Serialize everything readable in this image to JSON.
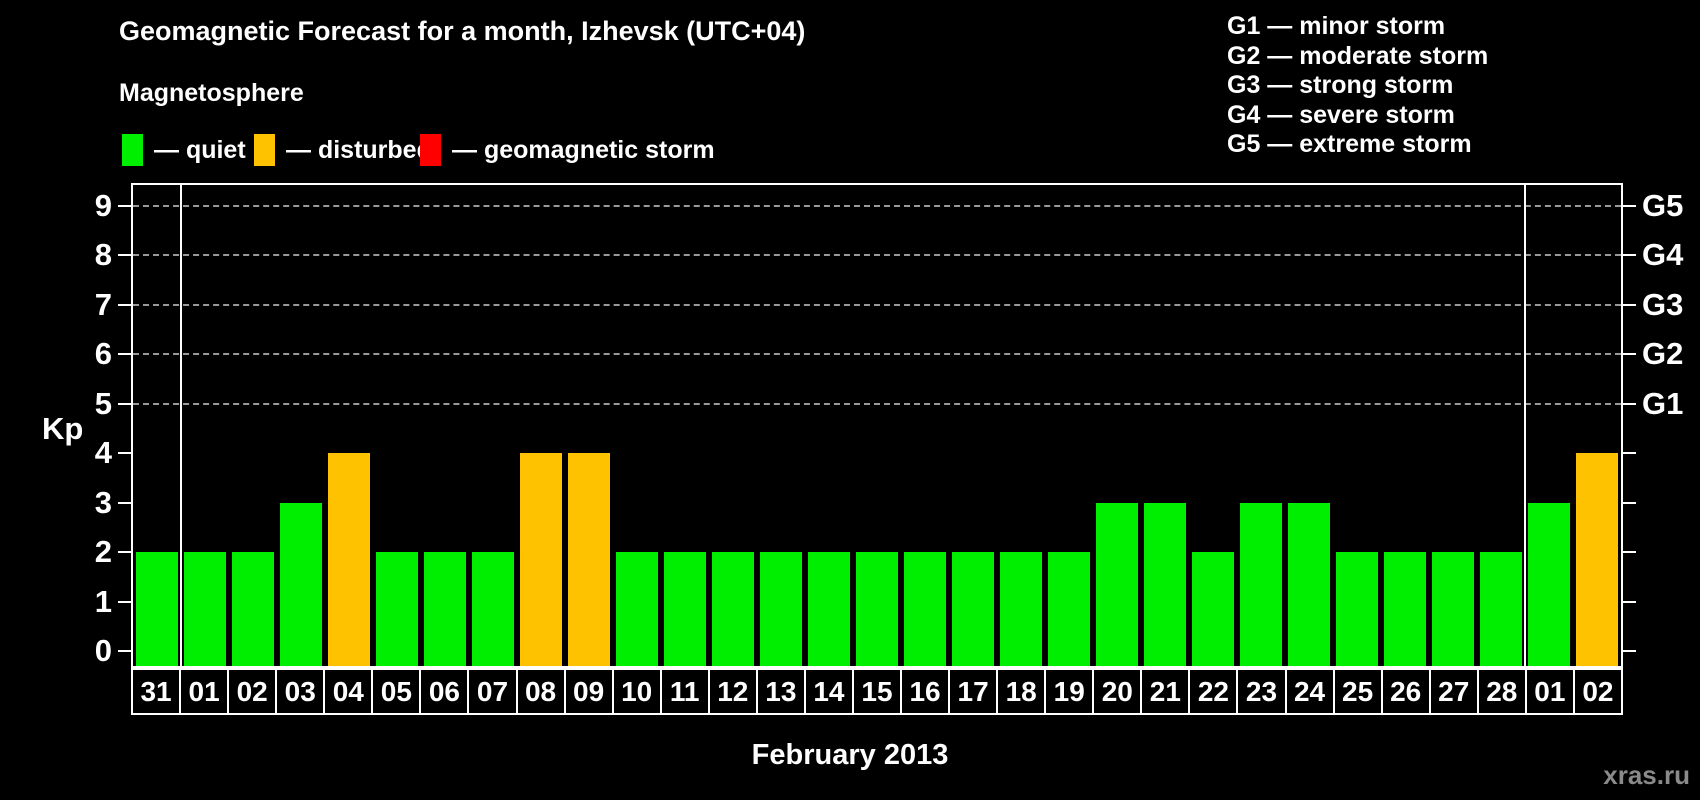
{
  "title": "Geomagnetic Forecast for a month, Izhevsk (UTC+04)",
  "subtitle": "Magnetosphere",
  "legend": {
    "items": [
      {
        "key": "quiet",
        "label": "— quiet",
        "color": "#00ee00",
        "x": 122
      },
      {
        "key": "disturbed",
        "label": "— disturbed",
        "color": "#ffc200",
        "x": 254
      },
      {
        "key": "storm",
        "label": "— geomagnetic storm",
        "color": "#ff0000",
        "x": 420
      }
    ]
  },
  "storm_legend": [
    "G1 — minor storm",
    "G2 — moderate storm",
    "G3 — strong storm",
    "G4 — severe storm",
    "G5 — extreme storm"
  ],
  "chart_data": {
    "type": "bar",
    "title": "Geomagnetic Forecast for a month, Izhevsk (UTC+04)",
    "xlabel": "February 2013",
    "ylabel": "Kp",
    "ylim": [
      0,
      9
    ],
    "y_ticks": [
      0,
      1,
      2,
      3,
      4,
      5,
      6,
      7,
      8,
      9
    ],
    "gridline_levels": [
      5,
      6,
      7,
      8,
      9
    ],
    "right_axis_labels": {
      "5": "G1",
      "6": "G2",
      "7": "G3",
      "8": "G4",
      "9": "G5"
    },
    "grid_color": "#999999",
    "categories": [
      "31",
      "01",
      "02",
      "03",
      "04",
      "05",
      "06",
      "07",
      "08",
      "09",
      "10",
      "11",
      "12",
      "13",
      "14",
      "15",
      "16",
      "17",
      "18",
      "19",
      "20",
      "21",
      "22",
      "23",
      "24",
      "25",
      "26",
      "27",
      "28",
      "01",
      "02"
    ],
    "values": [
      2,
      2,
      2,
      3,
      4,
      2,
      2,
      2,
      4,
      4,
      2,
      2,
      2,
      2,
      2,
      2,
      2,
      2,
      2,
      2,
      3,
      3,
      2,
      3,
      3,
      2,
      2,
      2,
      2,
      3,
      4
    ],
    "statuses": [
      "quiet",
      "quiet",
      "quiet",
      "quiet",
      "disturbed",
      "quiet",
      "quiet",
      "quiet",
      "disturbed",
      "disturbed",
      "quiet",
      "quiet",
      "quiet",
      "quiet",
      "quiet",
      "quiet",
      "quiet",
      "quiet",
      "quiet",
      "quiet",
      "quiet",
      "quiet",
      "quiet",
      "quiet",
      "quiet",
      "quiet",
      "quiet",
      "quiet",
      "quiet",
      "quiet",
      "disturbed"
    ],
    "month_boundaries_after_index": [
      0,
      28
    ],
    "legend_position": "top"
  },
  "watermark": "xras.ru"
}
